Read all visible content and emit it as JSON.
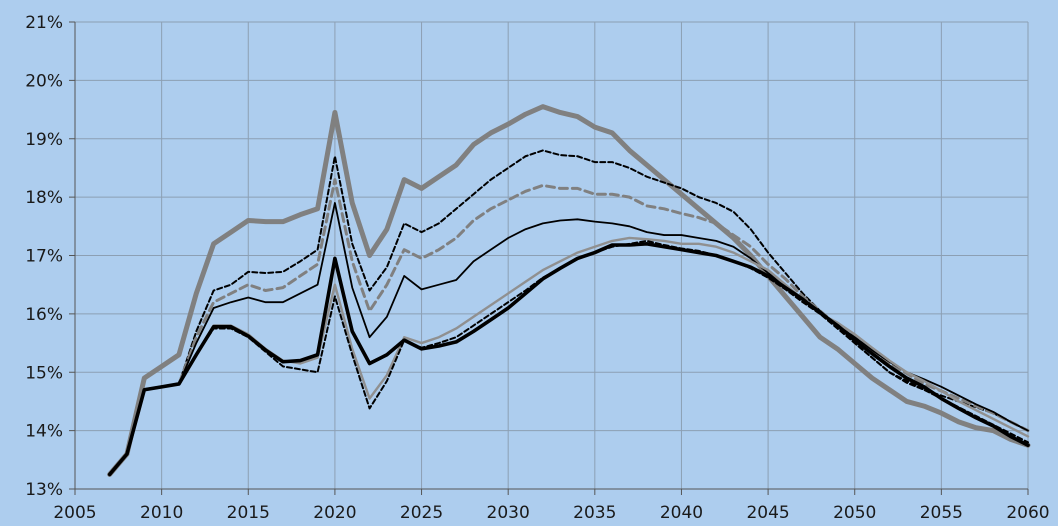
{
  "chart_data": {
    "type": "line",
    "title": "",
    "xlabel": "",
    "ylabel": "",
    "xlim": [
      2005,
      2060
    ],
    "ylim": [
      13,
      21
    ],
    "grid": true,
    "x_ticks": [
      "2005",
      "2010",
      "2015",
      "2020",
      "2025",
      "2030",
      "2035",
      "2040",
      "2045",
      "2050",
      "2055",
      "2060"
    ],
    "y_ticks": [
      "13%",
      "14%",
      "15%",
      "16%",
      "17%",
      "18%",
      "19%",
      "20%",
      "21%"
    ],
    "x": [
      2007,
      2008,
      2009,
      2010,
      2011,
      2012,
      2013,
      2014,
      2015,
      2016,
      2017,
      2018,
      2019,
      2020,
      2021,
      2022,
      2023,
      2024,
      2025,
      2026,
      2027,
      2028,
      2029,
      2030,
      2031,
      2032,
      2033,
      2034,
      2035,
      2036,
      2037,
      2038,
      2039,
      2040,
      2041,
      2042,
      2043,
      2044,
      2045,
      2046,
      2047,
      2048,
      2049,
      2050,
      2051,
      2052,
      2053,
      2054,
      2055,
      2056,
      2057,
      2058,
      2059,
      2060
    ],
    "series": [
      {
        "style": "thick-gray",
        "color": "#808080",
        "values": [
          13.25,
          13.6,
          14.9,
          15.1,
          15.3,
          16.35,
          17.2,
          17.4,
          17.6,
          17.58,
          17.58,
          17.7,
          17.8,
          19.45,
          17.9,
          17.0,
          17.45,
          18.3,
          18.15,
          18.35,
          18.55,
          18.9,
          19.1,
          19.25,
          19.42,
          19.55,
          19.45,
          19.38,
          19.2,
          19.1,
          18.8,
          18.55,
          18.3,
          18.05,
          17.8,
          17.55,
          17.3,
          17.0,
          16.65,
          16.3,
          15.95,
          15.6,
          15.4,
          15.15,
          14.9,
          14.7,
          14.5,
          14.42,
          14.3,
          14.15,
          14.05,
          14.0,
          13.85,
          13.75
        ]
      },
      {
        "style": "dashed-black",
        "color": "#000000",
        "values": [
          13.25,
          13.6,
          14.7,
          14.75,
          14.8,
          15.7,
          16.4,
          16.5,
          16.72,
          16.7,
          16.72,
          16.9,
          17.1,
          18.7,
          17.2,
          16.4,
          16.8,
          17.55,
          17.4,
          17.55,
          17.8,
          18.05,
          18.3,
          18.5,
          18.7,
          18.8,
          18.72,
          18.7,
          18.6,
          18.6,
          18.5,
          18.35,
          18.25,
          18.15,
          18.0,
          17.9,
          17.75,
          17.45,
          17.05,
          16.7,
          16.35,
          16.05,
          15.8,
          15.5,
          15.25,
          15.0,
          14.85,
          14.7,
          14.6,
          14.5,
          14.4,
          14.3,
          14.15,
          14.0
        ]
      },
      {
        "style": "dashed-gray",
        "color": "#808080",
        "values": [
          13.25,
          13.6,
          14.7,
          14.75,
          14.8,
          15.6,
          16.2,
          16.35,
          16.5,
          16.4,
          16.45,
          16.65,
          16.85,
          18.3,
          16.9,
          16.05,
          16.5,
          17.1,
          16.95,
          17.1,
          17.3,
          17.6,
          17.8,
          17.95,
          18.1,
          18.2,
          18.15,
          18.15,
          18.05,
          18.05,
          18.0,
          17.85,
          17.8,
          17.72,
          17.65,
          17.55,
          17.35,
          17.15,
          16.85,
          16.6,
          16.3,
          16.05,
          15.8,
          15.6,
          15.38,
          15.15,
          14.98,
          14.8,
          14.68,
          14.55,
          14.42,
          14.3,
          14.15,
          14.0
        ]
      },
      {
        "style": "thin-black",
        "color": "#000000",
        "values": [
          13.25,
          13.6,
          14.7,
          14.75,
          14.8,
          15.5,
          16.1,
          16.2,
          16.28,
          16.2,
          16.2,
          16.35,
          16.5,
          17.9,
          16.45,
          15.6,
          15.95,
          16.65,
          16.42,
          16.5,
          16.58,
          16.9,
          17.1,
          17.3,
          17.45,
          17.55,
          17.6,
          17.62,
          17.58,
          17.55,
          17.5,
          17.4,
          17.35,
          17.35,
          17.3,
          17.25,
          17.15,
          16.95,
          16.7,
          16.5,
          16.25,
          16.05,
          15.8,
          15.6,
          15.38,
          15.18,
          15.0,
          14.88,
          14.75,
          14.6,
          14.45,
          14.32,
          14.15,
          14.0
        ]
      },
      {
        "style": "medium-gray",
        "color": "#909090",
        "values": [
          13.25,
          13.6,
          14.7,
          14.75,
          14.8,
          15.3,
          15.8,
          15.8,
          15.65,
          15.4,
          15.2,
          15.15,
          15.25,
          16.5,
          15.4,
          14.55,
          14.95,
          15.6,
          15.5,
          15.6,
          15.75,
          15.95,
          16.15,
          16.35,
          16.55,
          16.75,
          16.9,
          17.05,
          17.15,
          17.25,
          17.3,
          17.28,
          17.25,
          17.2,
          17.2,
          17.15,
          17.05,
          16.9,
          16.75,
          16.5,
          16.25,
          16.0,
          15.85,
          15.65,
          15.42,
          15.2,
          15.0,
          14.85,
          14.68,
          14.5,
          14.35,
          14.2,
          14.05,
          13.9
        ]
      },
      {
        "style": "dashed-black-2",
        "color": "#000000",
        "values": [
          13.25,
          13.6,
          14.7,
          14.75,
          14.8,
          15.3,
          15.75,
          15.75,
          15.6,
          15.35,
          15.1,
          15.05,
          15.0,
          16.3,
          15.3,
          14.38,
          14.85,
          15.55,
          15.42,
          15.5,
          15.6,
          15.8,
          16.0,
          16.2,
          16.4,
          16.62,
          16.78,
          16.95,
          17.05,
          17.15,
          17.2,
          17.25,
          17.18,
          17.12,
          17.08,
          17.0,
          16.9,
          16.78,
          16.62,
          16.42,
          16.2,
          16.0,
          15.75,
          15.5,
          15.25,
          15.0,
          14.82,
          14.7,
          14.55,
          14.4,
          14.25,
          14.1,
          13.95,
          13.8
        ]
      },
      {
        "style": "thick-black",
        "color": "#000000",
        "values": [
          13.25,
          13.6,
          14.7,
          14.75,
          14.8,
          15.3,
          15.78,
          15.78,
          15.62,
          15.38,
          15.18,
          15.2,
          15.3,
          16.95,
          15.7,
          15.15,
          15.3,
          15.55,
          15.4,
          15.45,
          15.52,
          15.7,
          15.9,
          16.1,
          16.35,
          16.6,
          16.78,
          16.95,
          17.05,
          17.18,
          17.18,
          17.2,
          17.15,
          17.1,
          17.05,
          17.0,
          16.9,
          16.8,
          16.65,
          16.45,
          16.25,
          16.02,
          15.8,
          15.55,
          15.32,
          15.1,
          14.9,
          14.75,
          14.55,
          14.38,
          14.22,
          14.08,
          13.9,
          13.75
        ]
      }
    ]
  }
}
